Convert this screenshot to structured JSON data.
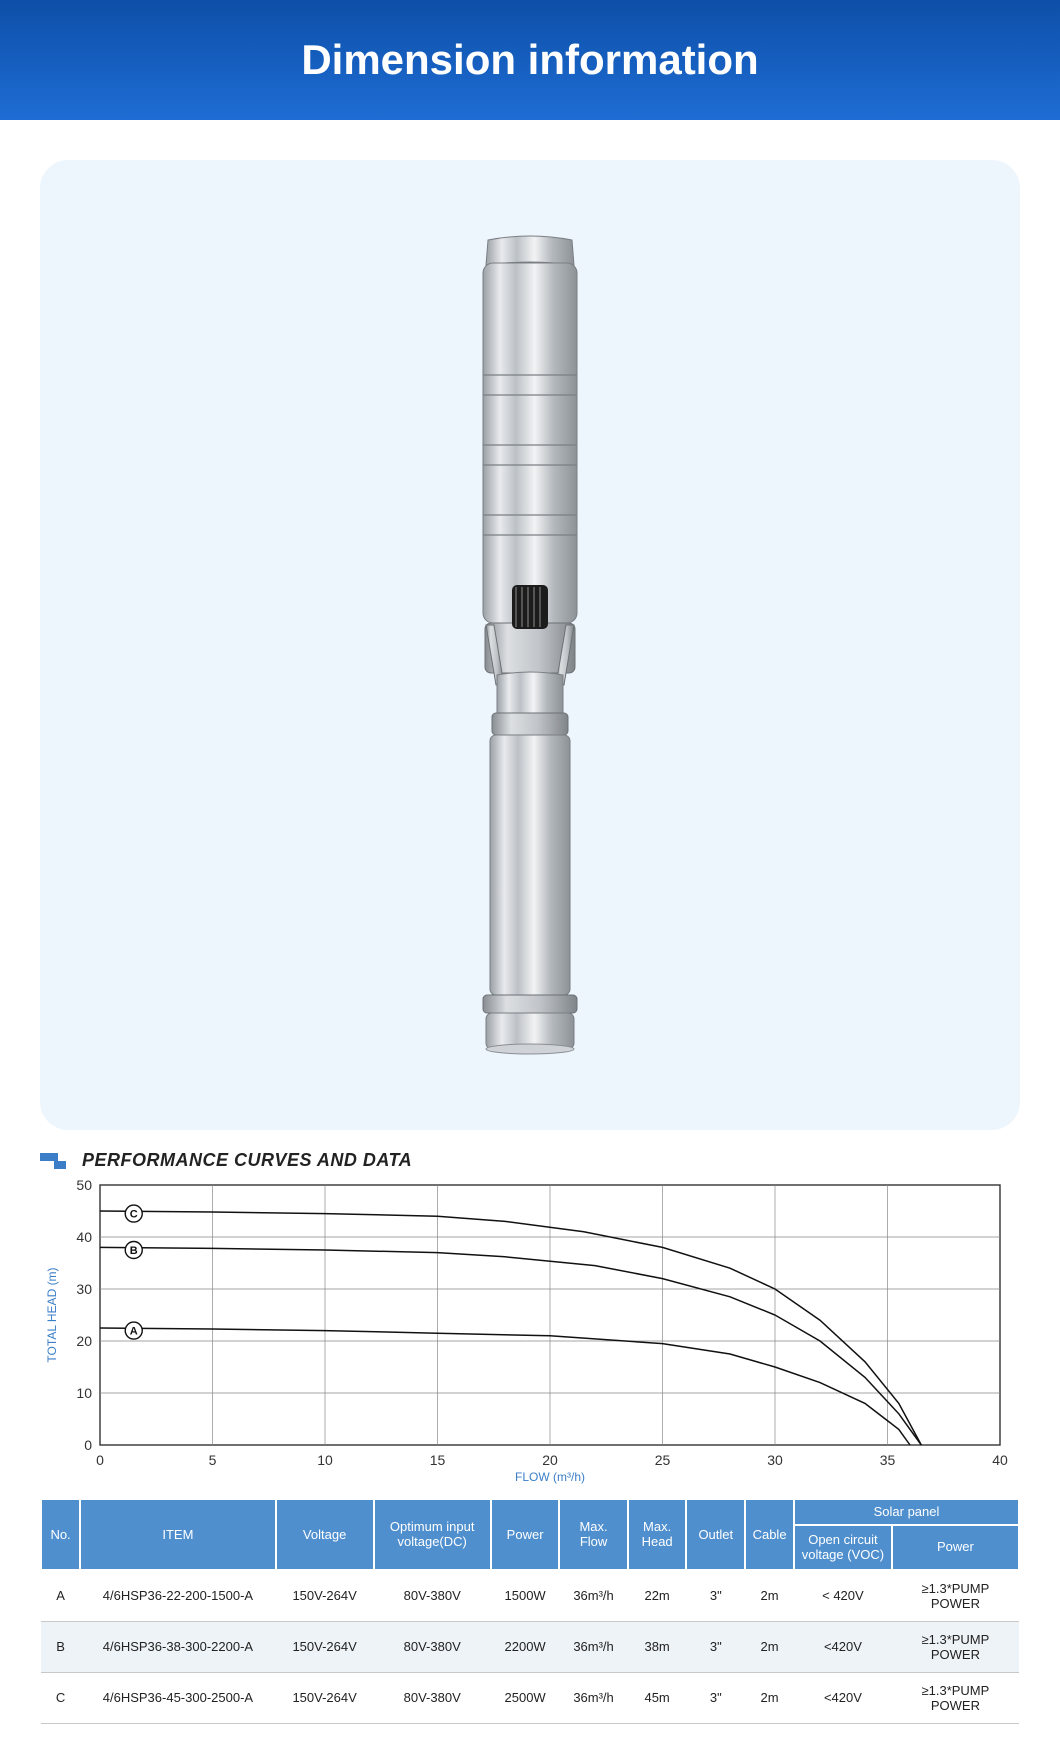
{
  "header": {
    "title": "Dimension information"
  },
  "section": {
    "title": "PERFORMANCE CURVES AND DATA"
  },
  "colors": {
    "banner_top": "#0d4fa8",
    "banner_bottom": "#1e6dd4",
    "panel_bg": "#eef6fd",
    "table_header": "#4f8fce",
    "accent": "#3b7ec7",
    "grid": "#888888",
    "curve": "#111111"
  },
  "chart": {
    "type": "line",
    "xlabel": "FLOW (m³/h)",
    "ylabel": "TOTAL HEAD (m)",
    "xlim": [
      0,
      40
    ],
    "ylim": [
      0,
      50
    ],
    "xtick_step": 5,
    "ytick_step": 10,
    "label_fontsize": 12,
    "tick_fontsize": 14,
    "background": "#ffffff",
    "grid_color": "#888888",
    "curve_color": "#111111",
    "curve_width": 1.5,
    "curves": [
      {
        "id": "A",
        "marker_x": 1.5,
        "marker_y": 22,
        "points": [
          [
            0,
            22.5
          ],
          [
            5,
            22.3
          ],
          [
            10,
            22
          ],
          [
            15,
            21.5
          ],
          [
            20,
            21
          ],
          [
            25,
            19.5
          ],
          [
            28,
            17.5
          ],
          [
            30,
            15
          ],
          [
            32,
            12
          ],
          [
            34,
            8
          ],
          [
            35.5,
            3
          ],
          [
            36,
            0
          ]
        ]
      },
      {
        "id": "B",
        "marker_x": 1.5,
        "marker_y": 37.5,
        "points": [
          [
            0,
            38
          ],
          [
            5,
            37.8
          ],
          [
            10,
            37.5
          ],
          [
            15,
            37
          ],
          [
            18,
            36.2
          ],
          [
            22,
            34.5
          ],
          [
            25,
            32
          ],
          [
            28,
            28.5
          ],
          [
            30,
            25
          ],
          [
            32,
            20
          ],
          [
            34,
            13
          ],
          [
            35.5,
            6
          ],
          [
            36.5,
            0
          ]
        ]
      },
      {
        "id": "C",
        "marker_x": 1.5,
        "marker_y": 44.5,
        "points": [
          [
            0,
            45
          ],
          [
            5,
            44.8
          ],
          [
            10,
            44.5
          ],
          [
            15,
            44
          ],
          [
            18,
            43
          ],
          [
            21.5,
            41
          ],
          [
            25,
            38
          ],
          [
            28,
            34
          ],
          [
            30,
            30
          ],
          [
            32,
            24
          ],
          [
            34,
            16
          ],
          [
            35.5,
            8
          ],
          [
            36.5,
            0
          ]
        ]
      }
    ]
  },
  "table": {
    "headers": {
      "no": "No.",
      "item": "ITEM",
      "voltage": "Voltage",
      "optimum": "Optimum input voltage(DC)",
      "power": "Power",
      "maxflow": "Max. Flow",
      "maxhead": "Max. Head",
      "outlet": "Outlet",
      "cable": "Cable",
      "solar_group": "Solar panel",
      "voc": "Open circuit voltage (VOC)",
      "sp_power": "Power"
    },
    "col_widths": [
      "4%",
      "20%",
      "10%",
      "12%",
      "7%",
      "7%",
      "6%",
      "6%",
      "5%",
      "10%",
      "13%"
    ],
    "rows": [
      {
        "no": "A",
        "item": "4/6HSP36-22-200-1500-A",
        "voltage": "150V-264V",
        "optimum": "80V-380V",
        "power": "1500W",
        "maxflow": "36m³/h",
        "maxhead": "22m",
        "outlet": "3\"",
        "cable": "2m",
        "voc": "< 420V",
        "sp_power": "≥1.3*PUMP POWER"
      },
      {
        "no": "B",
        "item": "4/6HSP36-38-300-2200-A",
        "voltage": "150V-264V",
        "optimum": "80V-380V",
        "power": "2200W",
        "maxflow": "36m³/h",
        "maxhead": "38m",
        "outlet": "3\"",
        "cable": "2m",
        "voc": "<420V",
        "sp_power": "≥1.3*PUMP POWER"
      },
      {
        "no": "C",
        "item": "4/6HSP36-45-300-2500-A",
        "voltage": "150V-264V",
        "optimum": "80V-380V",
        "power": "2500W",
        "maxflow": "36m³/h",
        "maxhead": "45m",
        "outlet": "3\"",
        "cable": "2m",
        "voc": "<420V",
        "sp_power": "≥1.3*PUMP POWER"
      }
    ]
  }
}
